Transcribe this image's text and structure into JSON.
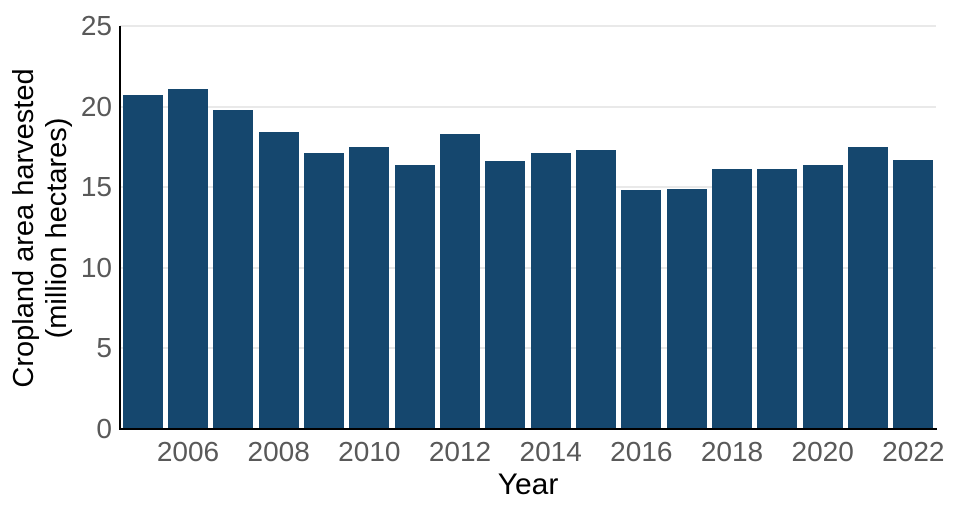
{
  "chart_data": {
    "type": "bar",
    "title": "",
    "xlabel": "Year",
    "ylabel": "Cropland area harvested\n(million hectares)",
    "ylabel_lines": [
      "Cropland area harvested",
      "(million hectares)"
    ],
    "categories": [
      2005,
      2006,
      2007,
      2008,
      2009,
      2010,
      2011,
      2012,
      2013,
      2014,
      2015,
      2016,
      2017,
      2018,
      2019,
      2020,
      2021,
      2022
    ],
    "values": [
      20.7,
      21.1,
      19.8,
      18.4,
      17.1,
      17.5,
      16.4,
      18.3,
      16.6,
      17.1,
      17.3,
      14.8,
      14.9,
      16.1,
      16.1,
      16.4,
      17.5,
      16.7
    ],
    "series_name": "Cropland area harvested (million hectares)",
    "x_tick_labels": [
      "2006",
      "2008",
      "2010",
      "2012",
      "2014",
      "2016",
      "2018",
      "2020",
      "2022"
    ],
    "y_tick_labels": [
      "0",
      "5",
      "10",
      "15",
      "20",
      "25"
    ],
    "y_ticks": [
      0,
      5,
      10,
      15,
      20,
      25
    ],
    "ylim": [
      0,
      25
    ],
    "grid": true,
    "legend_position": "none",
    "colors": {
      "bar": "#15476e",
      "tick_label": "#595959",
      "gridline": "#e9e9e9",
      "axis_spine": "#000000",
      "axis_title": "#000000",
      "background": "#ffffff"
    }
  }
}
